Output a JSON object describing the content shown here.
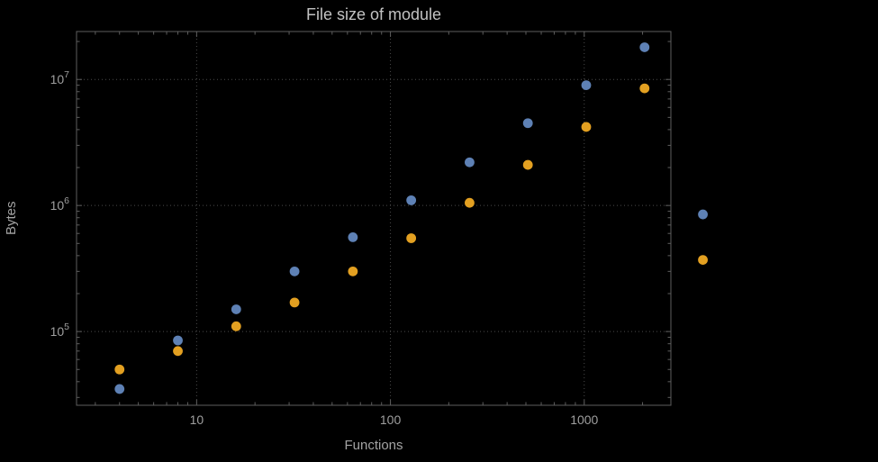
{
  "title": "File size of module",
  "axes": {
    "xlabel": "Functions",
    "ylabel": "Bytes"
  },
  "colors": {
    "background": "#000000",
    "frame": "#5e5e5e",
    "grid": "#4a4a4a",
    "tick_text": "#9f9f9f",
    "title_text": "#c2c2c2",
    "series1": "#5e81b5",
    "series2": "#e3a021"
  },
  "chart_data": {
    "type": "scatter",
    "title": "File size of module",
    "xlabel": "Functions",
    "ylabel": "Bytes",
    "xscale": "log",
    "yscale": "log",
    "xlim": [
      2.4,
      2800
    ],
    "ylim": [
      26000,
      24000000
    ],
    "grid": true,
    "legend": "none",
    "xticks": [
      10,
      100,
      1000
    ],
    "xtick_labels": [
      "10",
      "100",
      "1000"
    ],
    "yticks": [
      100000,
      1000000,
      10000000
    ],
    "ytick_exponents": [
      5,
      6,
      7
    ],
    "x": [
      4,
      8,
      16,
      32,
      64,
      128,
      256,
      512,
      1024,
      2048,
      4096
    ],
    "series": [
      {
        "name": "series-1",
        "color": "#5e81b5",
        "values": [
          35000,
          85000,
          150000,
          300000,
          560000,
          1100000,
          2200000,
          4500000,
          9000000,
          18000000,
          850000
        ]
      },
      {
        "name": "series-2",
        "color": "#e3a021",
        "values": [
          50000,
          70000,
          110000,
          170000,
          300000,
          550000,
          1050000,
          2100000,
          4200000,
          8500000,
          370000
        ]
      }
    ]
  }
}
